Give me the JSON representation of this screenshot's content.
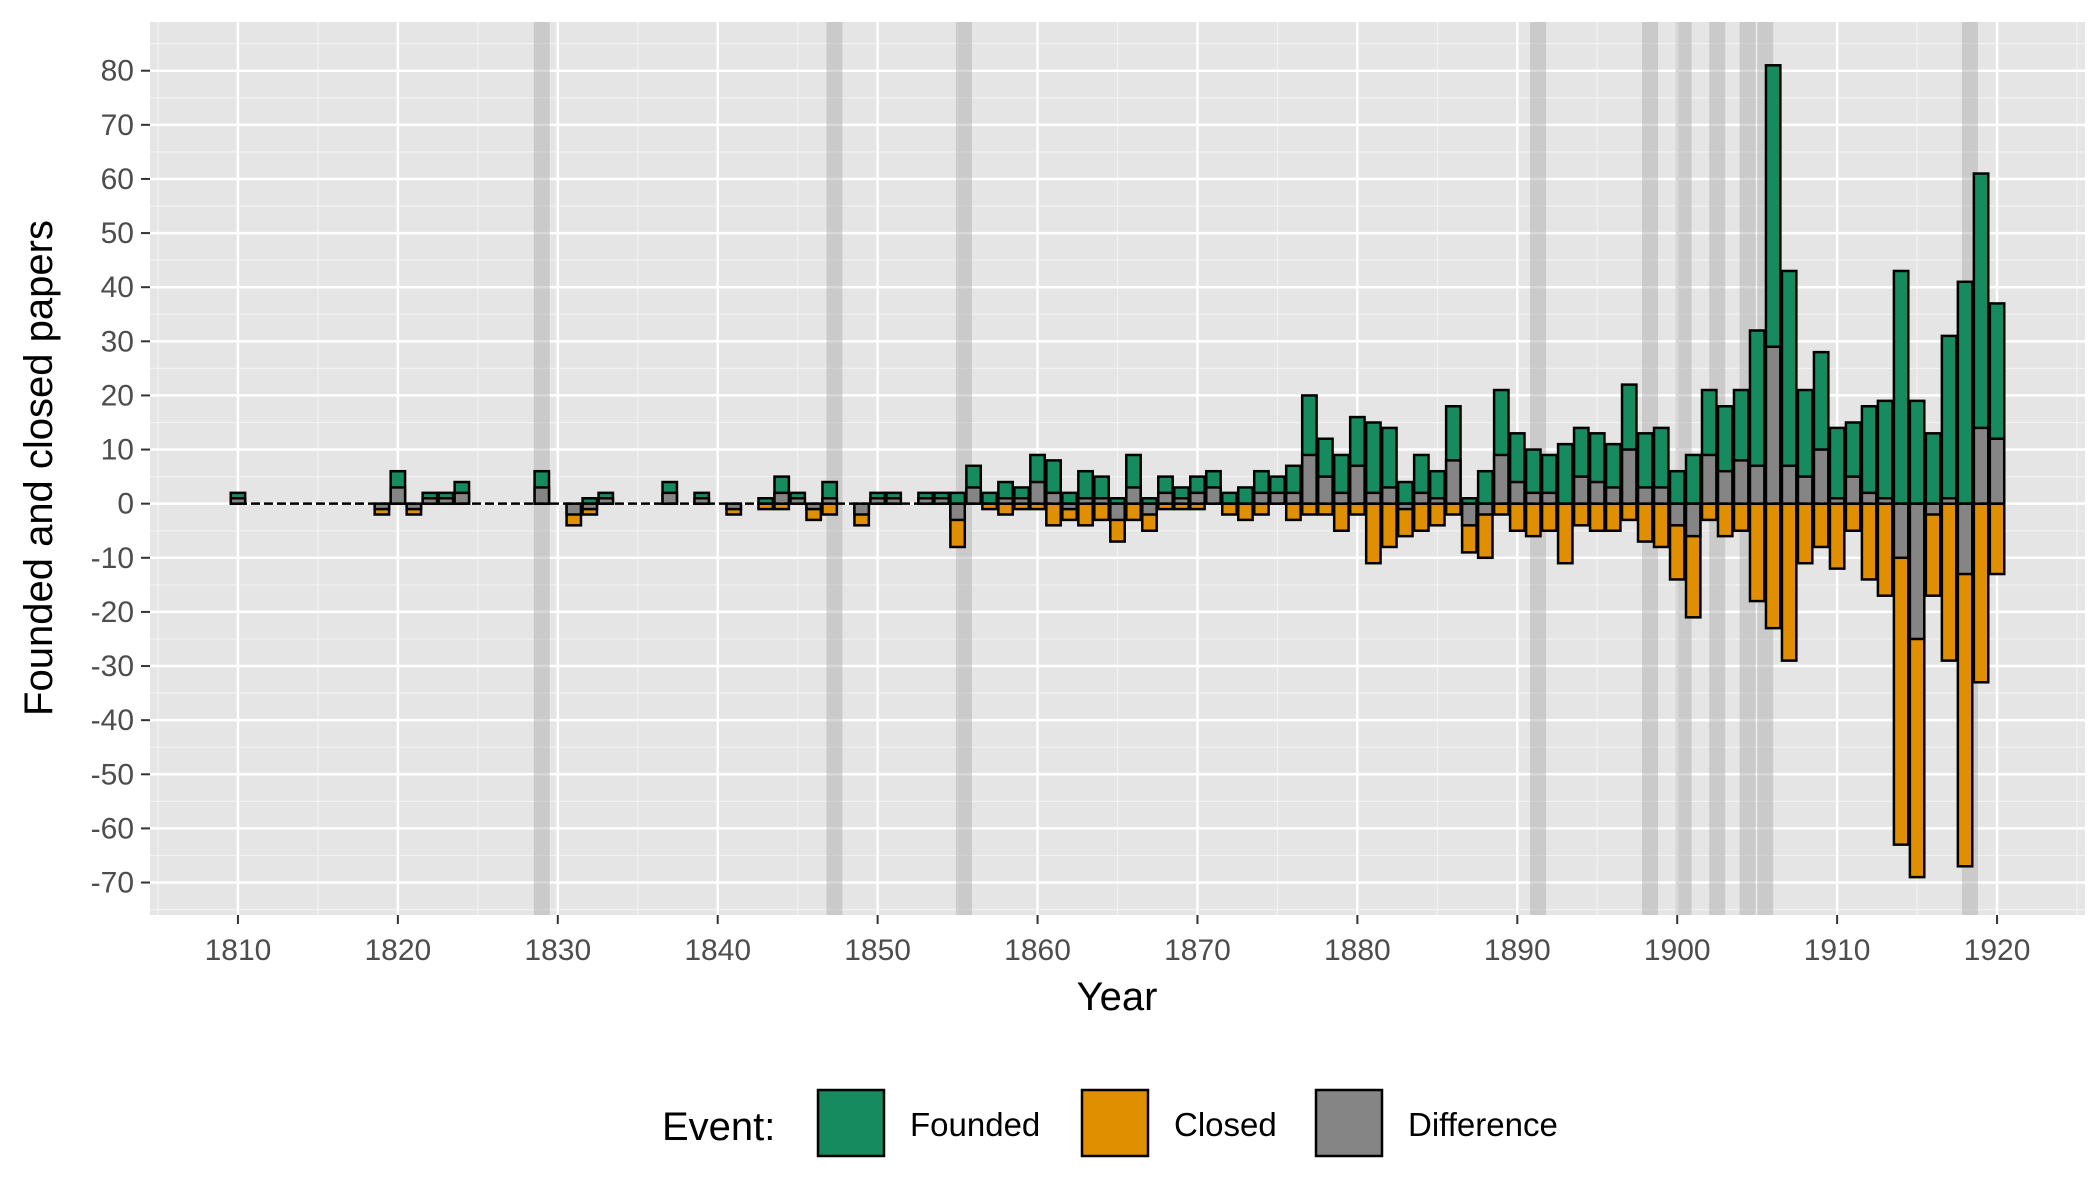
{
  "chart_data": {
    "type": "bar",
    "title": "",
    "xlabel": "Year",
    "ylabel": "Founded and closed papers",
    "xlim": [
      1804.5,
      1925.5
    ],
    "ylim": [
      -76,
      89
    ],
    "x_ticks": [
      1810,
      1820,
      1830,
      1840,
      1850,
      1860,
      1870,
      1880,
      1890,
      1900,
      1910,
      1920
    ],
    "y_ticks": [
      -70,
      -60,
      -50,
      -40,
      -30,
      -20,
      -10,
      0,
      10,
      20,
      30,
      40,
      50,
      60,
      70,
      80
    ],
    "grid": true,
    "background": "#e5e5e5",
    "highlight_years": [
      1829,
      1847.3,
      1855.4,
      1891.3,
      1898.3,
      1900.4,
      1902.5,
      1904.4,
      1905.5,
      1918.3
    ],
    "legend": {
      "title": "Event:",
      "position": "bottom",
      "entries": [
        {
          "label": "Founded",
          "color": "#168b5f"
        },
        {
          "label": "Closed",
          "color": "#e08f00"
        },
        {
          "label": "Difference",
          "color": "#858585"
        }
      ]
    },
    "series": [
      {
        "name": "Founded",
        "color": "#168b5f",
        "data": [
          [
            1810,
            2
          ],
          [
            1820,
            6
          ],
          [
            1822,
            2
          ],
          [
            1823,
            2
          ],
          [
            1824,
            4
          ],
          [
            1829,
            6
          ],
          [
            1832,
            1
          ],
          [
            1833,
            2
          ],
          [
            1837,
            4
          ],
          [
            1839,
            2
          ],
          [
            1843,
            1
          ],
          [
            1844,
            5
          ],
          [
            1845,
            2
          ],
          [
            1847,
            4
          ],
          [
            1850,
            2
          ],
          [
            1851,
            2
          ],
          [
            1853,
            2
          ],
          [
            1854,
            2
          ],
          [
            1855,
            2
          ],
          [
            1856,
            7
          ],
          [
            1857,
            2
          ],
          [
            1858,
            4
          ],
          [
            1859,
            3
          ],
          [
            1860,
            9
          ],
          [
            1861,
            8
          ],
          [
            1862,
            2
          ],
          [
            1863,
            6
          ],
          [
            1864,
            5
          ],
          [
            1865,
            1
          ],
          [
            1866,
            9
          ],
          [
            1867,
            1
          ],
          [
            1868,
            5
          ],
          [
            1869,
            3
          ],
          [
            1870,
            5
          ],
          [
            1871,
            6
          ],
          [
            1872,
            2
          ],
          [
            1873,
            3
          ],
          [
            1874,
            6
          ],
          [
            1875,
            5
          ],
          [
            1876,
            7
          ],
          [
            1877,
            20
          ],
          [
            1878,
            12
          ],
          [
            1879,
            9
          ],
          [
            1880,
            16
          ],
          [
            1881,
            15
          ],
          [
            1882,
            14
          ],
          [
            1883,
            4
          ],
          [
            1884,
            9
          ],
          [
            1885,
            6
          ],
          [
            1886,
            18
          ],
          [
            1887,
            1
          ],
          [
            1888,
            6
          ],
          [
            1889,
            21
          ],
          [
            1890,
            13
          ],
          [
            1891,
            10
          ],
          [
            1892,
            9
          ],
          [
            1893,
            11
          ],
          [
            1894,
            14
          ],
          [
            1895,
            13
          ],
          [
            1896,
            11
          ],
          [
            1897,
            22
          ],
          [
            1898,
            13
          ],
          [
            1899,
            14
          ],
          [
            1900,
            6
          ],
          [
            1901,
            9
          ],
          [
            1902,
            21
          ],
          [
            1903,
            18
          ],
          [
            1904,
            21
          ],
          [
            1905,
            32
          ],
          [
            1906,
            81
          ],
          [
            1907,
            43
          ],
          [
            1908,
            21
          ],
          [
            1909,
            28
          ],
          [
            1910,
            14
          ],
          [
            1911,
            15
          ],
          [
            1912,
            18
          ],
          [
            1913,
            19
          ],
          [
            1914,
            43
          ],
          [
            1915,
            19
          ],
          [
            1916,
            13
          ],
          [
            1917,
            31
          ],
          [
            1918,
            41
          ],
          [
            1919,
            61
          ],
          [
            1920,
            37
          ]
        ]
      },
      {
        "name": "Closed",
        "color": "#e08f00",
        "data": [
          [
            1819,
            -2
          ],
          [
            1821,
            -2
          ],
          [
            1831,
            -4
          ],
          [
            1832,
            -2
          ],
          [
            1841,
            -2
          ],
          [
            1843,
            -1
          ],
          [
            1844,
            -1
          ],
          [
            1846,
            -3
          ],
          [
            1847,
            -2
          ],
          [
            1849,
            -4
          ],
          [
            1855,
            -8
          ],
          [
            1857,
            -1
          ],
          [
            1858,
            -2
          ],
          [
            1859,
            -1
          ],
          [
            1860,
            -1
          ],
          [
            1861,
            -4
          ],
          [
            1862,
            -3
          ],
          [
            1863,
            -4
          ],
          [
            1864,
            -3
          ],
          [
            1865,
            -7
          ],
          [
            1866,
            -3
          ],
          [
            1867,
            -5
          ],
          [
            1868,
            -1
          ],
          [
            1869,
            -1
          ],
          [
            1870,
            -1
          ],
          [
            1872,
            -2
          ],
          [
            1873,
            -3
          ],
          [
            1874,
            -2
          ],
          [
            1876,
            -3
          ],
          [
            1877,
            -2
          ],
          [
            1878,
            -2
          ],
          [
            1879,
            -5
          ],
          [
            1880,
            -2
          ],
          [
            1881,
            -11
          ],
          [
            1882,
            -8
          ],
          [
            1883,
            -6
          ],
          [
            1884,
            -5
          ],
          [
            1885,
            -4
          ],
          [
            1886,
            -2
          ],
          [
            1887,
            -9
          ],
          [
            1888,
            -10
          ],
          [
            1889,
            -2
          ],
          [
            1890,
            -5
          ],
          [
            1891,
            -6
          ],
          [
            1892,
            -5
          ],
          [
            1893,
            -11
          ],
          [
            1894,
            -4
          ],
          [
            1895,
            -5
          ],
          [
            1896,
            -5
          ],
          [
            1897,
            -3
          ],
          [
            1898,
            -7
          ],
          [
            1899,
            -8
          ],
          [
            1900,
            -14
          ],
          [
            1901,
            -21
          ],
          [
            1902,
            -3
          ],
          [
            1903,
            -6
          ],
          [
            1904,
            -5
          ],
          [
            1905,
            -18
          ],
          [
            1906,
            -23
          ],
          [
            1907,
            -29
          ],
          [
            1908,
            -11
          ],
          [
            1909,
            -8
          ],
          [
            1910,
            -12
          ],
          [
            1911,
            -5
          ],
          [
            1912,
            -14
          ],
          [
            1913,
            -17
          ],
          [
            1914,
            -63
          ],
          [
            1915,
            -69
          ],
          [
            1916,
            -17
          ],
          [
            1917,
            -29
          ],
          [
            1918,
            -67
          ],
          [
            1919,
            -33
          ],
          [
            1920,
            -13
          ]
        ]
      },
      {
        "name": "Difference",
        "color": "#858585",
        "data": [
          [
            1810,
            1
          ],
          [
            1819,
            -1
          ],
          [
            1820,
            3
          ],
          [
            1821,
            -1
          ],
          [
            1822,
            1
          ],
          [
            1823,
            1
          ],
          [
            1824,
            2
          ],
          [
            1829,
            3
          ],
          [
            1831,
            -2
          ],
          [
            1832,
            -1
          ],
          [
            1833,
            1
          ],
          [
            1837,
            2
          ],
          [
            1839,
            1
          ],
          [
            1841,
            -1
          ],
          [
            1843,
            0
          ],
          [
            1844,
            2
          ],
          [
            1845,
            1
          ],
          [
            1846,
            -1
          ],
          [
            1847,
            1
          ],
          [
            1849,
            -2
          ],
          [
            1850,
            1
          ],
          [
            1851,
            1
          ],
          [
            1853,
            1
          ],
          [
            1854,
            1
          ],
          [
            1855,
            -3
          ],
          [
            1856,
            3
          ],
          [
            1857,
            0
          ],
          [
            1858,
            1
          ],
          [
            1859,
            1
          ],
          [
            1860,
            4
          ],
          [
            1861,
            2
          ],
          [
            1862,
            -1
          ],
          [
            1863,
            1
          ],
          [
            1864,
            1
          ],
          [
            1865,
            -3
          ],
          [
            1866,
            3
          ],
          [
            1867,
            -2
          ],
          [
            1868,
            2
          ],
          [
            1869,
            1
          ],
          [
            1870,
            2
          ],
          [
            1871,
            3
          ],
          [
            1872,
            0
          ],
          [
            1873,
            0
          ],
          [
            1874,
            2
          ],
          [
            1875,
            2
          ],
          [
            1876,
            2
          ],
          [
            1877,
            9
          ],
          [
            1878,
            5
          ],
          [
            1879,
            2
          ],
          [
            1880,
            7
          ],
          [
            1881,
            2
          ],
          [
            1882,
            3
          ],
          [
            1883,
            -1
          ],
          [
            1884,
            2
          ],
          [
            1885,
            1
          ],
          [
            1886,
            8
          ],
          [
            1887,
            -4
          ],
          [
            1888,
            -2
          ],
          [
            1889,
            9
          ],
          [
            1890,
            4
          ],
          [
            1891,
            2
          ],
          [
            1892,
            2
          ],
          [
            1893,
            0
          ],
          [
            1894,
            5
          ],
          [
            1895,
            4
          ],
          [
            1896,
            3
          ],
          [
            1897,
            10
          ],
          [
            1898,
            3
          ],
          [
            1899,
            3
          ],
          [
            1900,
            -4
          ],
          [
            1901,
            -6
          ],
          [
            1902,
            9
          ],
          [
            1903,
            6
          ],
          [
            1904,
            8
          ],
          [
            1905,
            7
          ],
          [
            1906,
            29
          ],
          [
            1907,
            7
          ],
          [
            1908,
            5
          ],
          [
            1909,
            10
          ],
          [
            1910,
            1
          ],
          [
            1911,
            5
          ],
          [
            1912,
            2
          ],
          [
            1913,
            1
          ],
          [
            1914,
            -10
          ],
          [
            1915,
            -25
          ],
          [
            1916,
            -2
          ],
          [
            1917,
            1
          ],
          [
            1918,
            -13
          ],
          [
            1919,
            14
          ],
          [
            1920,
            12
          ]
        ]
      }
    ]
  }
}
